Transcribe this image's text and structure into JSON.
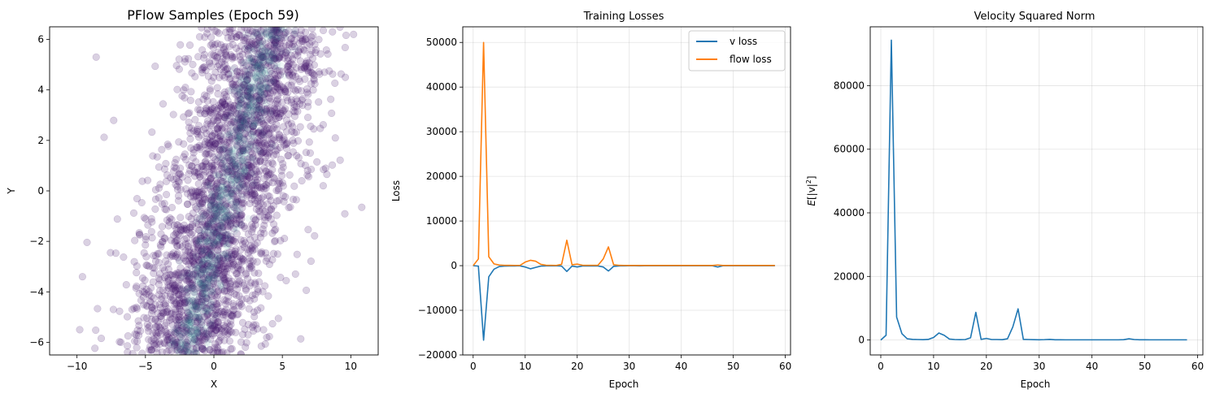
{
  "chart_data": [
    {
      "type": "scatter",
      "title": "PFlow Samples (Epoch 59)",
      "xlabel": "X",
      "ylabel": "Y",
      "xlim": [
        -12,
        12
      ],
      "ylim": [
        -6.5,
        6.5
      ],
      "xticks": [
        "−10",
        "−5",
        "0",
        "5",
        "10"
      ],
      "yticks": [
        "−6",
        "−4",
        "−2",
        "0",
        "2",
        "4",
        "6"
      ],
      "grid": false,
      "marker_color": "#46176e",
      "density_color": "#2a8c8c",
      "samples": {
        "distribution": "sheared band",
        "center_line": {
          "y_from": -6.5,
          "x_at_y_from": -2.2,
          "y_to": 6.5,
          "x_at_y_to": 4.2
        },
        "x_spread_std": 2.4,
        "count_shown": 2600
      },
      "outliers": [
        [
          -8.6,
          5.3
        ],
        [
          -9.6,
          -3.4
        ],
        [
          -9.8,
          -5.5
        ],
        [
          10.8,
          -0.65
        ],
        [
          9.6,
          4.5
        ],
        [
          10.2,
          6.2
        ]
      ]
    },
    {
      "type": "line",
      "title": "Training Losses",
      "xlabel": "Epoch",
      "ylabel": "Loss",
      "xlim": [
        -2,
        61
      ],
      "ylim": [
        -20000,
        53500
      ],
      "xticks": [
        "0",
        "10",
        "20",
        "30",
        "40",
        "50",
        "60"
      ],
      "yticks": [
        "−20000",
        "−10000",
        "0",
        "10000",
        "20000",
        "30000",
        "40000",
        "50000"
      ],
      "grid": true,
      "legend": "top-right",
      "x": [
        0,
        1,
        2,
        3,
        4,
        5,
        6,
        7,
        8,
        9,
        10,
        11,
        12,
        13,
        14,
        15,
        16,
        17,
        18,
        19,
        20,
        21,
        22,
        23,
        24,
        25,
        26,
        27,
        28,
        29,
        30,
        31,
        32,
        33,
        34,
        35,
        36,
        37,
        38,
        39,
        40,
        41,
        42,
        43,
        44,
        45,
        46,
        47,
        48,
        49,
        50,
        51,
        52,
        53,
        54,
        55,
        56,
        57,
        58
      ],
      "series": [
        {
          "name": "v loss",
          "color": "#1f77b4",
          "values": [
            0,
            -100,
            -16700,
            -2500,
            -800,
            -200,
            -100,
            -80,
            -60,
            -50,
            -300,
            -700,
            -400,
            -100,
            -50,
            -40,
            -30,
            -100,
            -1300,
            -100,
            -300,
            -80,
            -50,
            -60,
            -80,
            -300,
            -1200,
            -150,
            -60,
            -40,
            -30,
            -30,
            -40,
            -20,
            -20,
            -20,
            -20,
            -20,
            -20,
            -20,
            -20,
            -20,
            -20,
            -20,
            -20,
            -20,
            -20,
            -300,
            -20,
            -20,
            -20,
            -20,
            -20,
            -20,
            -20,
            -20,
            -20,
            -20,
            -20
          ]
        },
        {
          "name": "flow loss",
          "color": "#ff7f0e",
          "values": [
            0,
            1500,
            50000,
            2000,
            400,
            150,
            80,
            70,
            60,
            60,
            800,
            1200,
            1000,
            300,
            100,
            80,
            60,
            300,
            5700,
            200,
            350,
            100,
            80,
            80,
            100,
            1500,
            4200,
            200,
            80,
            60,
            50,
            50,
            60,
            40,
            40,
            40,
            40,
            40,
            40,
            40,
            40,
            40,
            40,
            40,
            40,
            40,
            40,
            150,
            40,
            40,
            40,
            40,
            40,
            40,
            40,
            40,
            40,
            40,
            40
          ]
        }
      ]
    },
    {
      "type": "line",
      "title": "Velocity Squared Norm",
      "xlabel": "Epoch",
      "ylabel_base": "E",
      "ylabel_inner": "[|v|",
      "ylabel_sup": "2",
      "ylabel_tail": "]",
      "xlim": [
        -2,
        61
      ],
      "ylim": [
        -4700,
        98500
      ],
      "xticks": [
        "0",
        "10",
        "20",
        "30",
        "40",
        "50",
        "60"
      ],
      "yticks": [
        "0",
        "20000",
        "40000",
        "60000",
        "80000"
      ],
      "grid": true,
      "x": [
        0,
        1,
        2,
        3,
        4,
        5,
        6,
        7,
        8,
        9,
        10,
        11,
        12,
        13,
        14,
        15,
        16,
        17,
        18,
        19,
        20,
        21,
        22,
        23,
        24,
        25,
        26,
        27,
        28,
        29,
        30,
        31,
        32,
        33,
        34,
        35,
        36,
        37,
        38,
        39,
        40,
        41,
        42,
        43,
        44,
        45,
        46,
        47,
        48,
        49,
        50,
        51,
        52,
        53,
        54,
        55,
        56,
        57,
        58
      ],
      "series": [
        {
          "color": "#1f77b4",
          "values": [
            0,
            1500,
            94300,
            7200,
            2000,
            400,
            200,
            150,
            100,
            200,
            800,
            2200,
            1500,
            300,
            150,
            100,
            150,
            700,
            8700,
            200,
            500,
            150,
            150,
            100,
            400,
            4100,
            9800,
            200,
            150,
            100,
            80,
            120,
            200,
            80,
            80,
            60,
            60,
            60,
            60,
            60,
            60,
            60,
            60,
            60,
            60,
            60,
            100,
            400,
            150,
            80,
            80,
            60,
            60,
            60,
            60,
            60,
            60,
            60,
            60
          ]
        }
      ]
    }
  ]
}
